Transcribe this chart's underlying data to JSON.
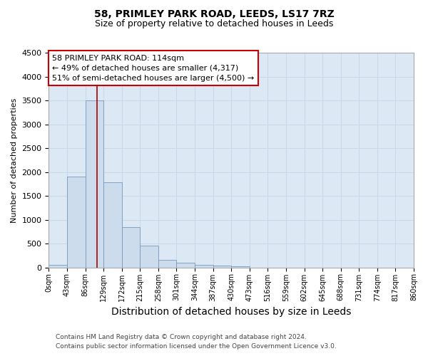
{
  "title1": "58, PRIMLEY PARK ROAD, LEEDS, LS17 7RZ",
  "title2": "Size of property relative to detached houses in Leeds",
  "xlabel": "Distribution of detached houses by size in Leeds",
  "ylabel": "Number of detached properties",
  "footnote1": "Contains HM Land Registry data © Crown copyright and database right 2024.",
  "footnote2": "Contains public sector information licensed under the Open Government Licence v3.0.",
  "bin_edges": [
    0,
    43,
    86,
    129,
    172,
    215,
    258,
    301,
    344,
    387,
    430,
    473,
    516,
    559,
    602,
    645,
    688,
    731,
    774,
    817,
    860
  ],
  "bar_heights": [
    50,
    1900,
    3500,
    1780,
    840,
    460,
    160,
    100,
    60,
    40,
    30,
    0,
    0,
    0,
    0,
    0,
    0,
    0,
    0,
    0
  ],
  "bar_color": "#ccdcec",
  "bar_edge_color": "#7799bb",
  "red_line_x": 114,
  "red_line_color": "#aa0000",
  "annotation_line1": "58 PRIMLEY PARK ROAD: 114sqm",
  "annotation_line2": "← 49% of detached houses are smaller (4,317)",
  "annotation_line3": "51% of semi-detached houses are larger (4,500) →",
  "annotation_box_color": "#ffffff",
  "annotation_box_edge": "#cc0000",
  "ylim": [
    0,
    4500
  ],
  "yticks": [
    0,
    500,
    1000,
    1500,
    2000,
    2500,
    3000,
    3500,
    4000,
    4500
  ],
  "xtick_labels": [
    "0sqm",
    "43sqm",
    "86sqm",
    "129sqm",
    "172sqm",
    "215sqm",
    "258sqm",
    "301sqm",
    "344sqm",
    "387sqm",
    "430sqm",
    "473sqm",
    "516sqm",
    "559sqm",
    "602sqm",
    "645sqm",
    "688sqm",
    "731sqm",
    "774sqm",
    "817sqm",
    "860sqm"
  ],
  "grid_color": "#c8d8e8",
  "background_color": "#dce8f4",
  "title1_fontsize": 10,
  "title2_fontsize": 9,
  "ylabel_fontsize": 8,
  "xlabel_fontsize": 10,
  "ytick_fontsize": 8,
  "xtick_fontsize": 7,
  "footnote_fontsize": 6.5,
  "annot_fontsize": 8
}
